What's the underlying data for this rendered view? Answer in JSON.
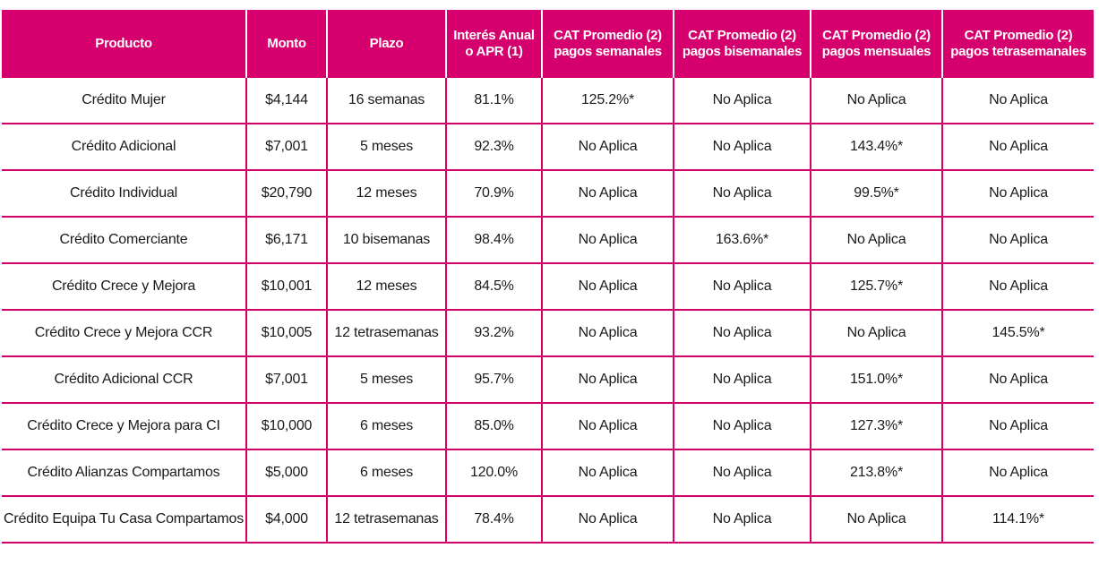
{
  "headers": {
    "producto": "Producto",
    "monto": "Monto",
    "plazo": "Plazo",
    "interes_1": "Interés Anual",
    "interes_2": "o APR (1)",
    "cat_sem_1": "CAT Promedio (2)",
    "cat_sem_2": "pagos semanales",
    "cat_bis_1": "CAT Promedio (2)",
    "cat_bis_2": "pagos bisemanales",
    "cat_men_1": "CAT Promedio (2)",
    "cat_men_2": "pagos mensuales",
    "cat_tet_1": "CAT Promedio (2)",
    "cat_tet_2": "pagos tetrasemanales"
  },
  "rows": [
    {
      "producto": "Crédito Mujer",
      "monto": "$4,144",
      "plazo": "16 semanas",
      "interes": "81.1%",
      "cat_sem": "125.2%*",
      "cat_bis": "No Aplica",
      "cat_men": "No Aplica",
      "cat_tet": "No Aplica"
    },
    {
      "producto": "Crédito Adicional",
      "monto": "$7,001",
      "plazo": "5 meses",
      "interes": "92.3%",
      "cat_sem": "No Aplica",
      "cat_bis": "No Aplica",
      "cat_men": "143.4%*",
      "cat_tet": "No Aplica"
    },
    {
      "producto": "Crédito Individual",
      "monto": "$20,790",
      "plazo": "12 meses",
      "interes": "70.9%",
      "cat_sem": "No Aplica",
      "cat_bis": "No Aplica",
      "cat_men": "99.5%*",
      "cat_tet": "No Aplica"
    },
    {
      "producto": "Crédito Comerciante",
      "monto": "$6,171",
      "plazo": "10 bisemanas",
      "interes": "98.4%",
      "cat_sem": "No Aplica",
      "cat_bis": "163.6%*",
      "cat_men": "No Aplica",
      "cat_tet": "No Aplica"
    },
    {
      "producto": "Crédito Crece y Mejora",
      "monto": "$10,001",
      "plazo": "12 meses",
      "interes": "84.5%",
      "cat_sem": "No Aplica",
      "cat_bis": "No Aplica",
      "cat_men": "125.7%*",
      "cat_tet": "No Aplica"
    },
    {
      "producto": "Crédito Crece y Mejora CCR",
      "monto": "$10,005",
      "plazo": "12 tetrasemanas",
      "interes": "93.2%",
      "cat_sem": "No Aplica",
      "cat_bis": "No Aplica",
      "cat_men": "No Aplica",
      "cat_tet": "145.5%*"
    },
    {
      "producto": "Crédito Adicional CCR",
      "monto": "$7,001",
      "plazo": "5 meses",
      "interes": "95.7%",
      "cat_sem": "No Aplica",
      "cat_bis": "No Aplica",
      "cat_men": "151.0%*",
      "cat_tet": "No Aplica"
    },
    {
      "producto": "Crédito Crece y Mejora para CI",
      "monto": "$10,000",
      "plazo": "6 meses",
      "interes": "85.0%",
      "cat_sem": "No Aplica",
      "cat_bis": "No Aplica",
      "cat_men": "127.3%*",
      "cat_tet": "No Aplica"
    },
    {
      "producto": "Crédito Alianzas Compartamos",
      "monto": "$5,000",
      "plazo": "6 meses",
      "interes": "120.0%",
      "cat_sem": "No Aplica",
      "cat_bis": "No Aplica",
      "cat_men": "213.8%*",
      "cat_tet": "No Aplica"
    },
    {
      "producto": "Crédito Equipa Tu Casa Compartamos",
      "monto": "$4,000",
      "plazo": "12 tetrasemanas",
      "interes": "78.4%",
      "cat_sem": "No Aplica",
      "cat_bis": "No Aplica",
      "cat_men": "No Aplica",
      "cat_tet": "114.1%*"
    }
  ],
  "colors": {
    "accent": "#d5006d",
    "header_text": "#ffffff",
    "body_text": "#1a1a1a"
  }
}
